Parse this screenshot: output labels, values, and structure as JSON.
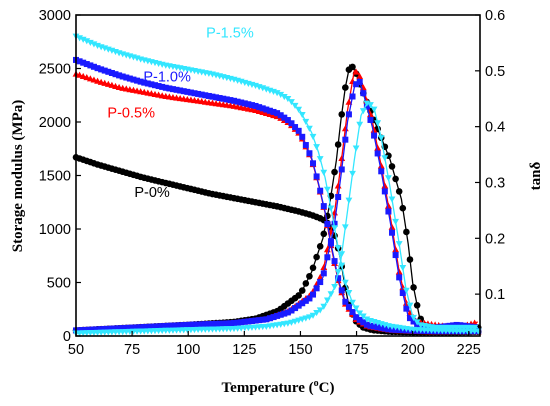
{
  "chart_data": {
    "type": "scatter",
    "xlabel": "Temperature (",
    "xlabel_sup": "o",
    "xlabel_end": "C)",
    "ylabel": "Storage modulus (MPa)",
    "y2label": "tanδ",
    "xlim": [
      50,
      230
    ],
    "ylim": [
      0,
      3000
    ],
    "y2lim": [
      0.025,
      0.6
    ],
    "xticks": [
      50,
      75,
      100,
      125,
      150,
      175,
      200,
      225
    ],
    "yticks": [
      0,
      500,
      1000,
      1500,
      2000,
      2500,
      3000
    ],
    "y2ticks": [
      0.1,
      0.2,
      0.3,
      0.4,
      0.5,
      0.6
    ],
    "y2ticklabels": [
      "0.1",
      "0.2",
      "0.3",
      "0.4",
      "0.5",
      "0.6"
    ],
    "series": [
      {
        "name": "P-0%",
        "color": "#000000",
        "marker": "circle",
        "storage_modulus": [
          [
            50,
            1670
          ],
          [
            60,
            1600
          ],
          [
            70,
            1540
          ],
          [
            80,
            1480
          ],
          [
            90,
            1430
          ],
          [
            100,
            1380
          ],
          [
            110,
            1330
          ],
          [
            120,
            1290
          ],
          [
            130,
            1250
          ],
          [
            140,
            1210
          ],
          [
            150,
            1160
          ],
          [
            155,
            1130
          ],
          [
            160,
            1090
          ],
          [
            163,
            1040
          ],
          [
            166,
            900
          ],
          [
            168,
            700
          ],
          [
            170,
            450
          ],
          [
            172,
            250
          ],
          [
            175,
            130
          ],
          [
            178,
            80
          ],
          [
            182,
            55
          ],
          [
            190,
            40
          ],
          [
            200,
            35
          ],
          [
            210,
            35
          ],
          [
            220,
            35
          ],
          [
            230,
            40
          ]
        ],
        "tan_delta": [
          [
            50,
            0.035
          ],
          [
            75,
            0.04
          ],
          [
            100,
            0.045
          ],
          [
            120,
            0.05
          ],
          [
            130,
            0.056
          ],
          [
            140,
            0.07
          ],
          [
            150,
            0.1
          ],
          [
            155,
            0.14
          ],
          [
            160,
            0.2
          ],
          [
            163,
            0.26
          ],
          [
            166,
            0.34
          ],
          [
            168,
            0.41
          ],
          [
            170,
            0.47
          ],
          [
            172,
            0.51
          ],
          [
            174,
            0.505
          ],
          [
            176,
            0.48
          ],
          [
            180,
            0.44
          ],
          [
            185,
            0.39
          ],
          [
            190,
            0.34
          ],
          [
            195,
            0.27
          ],
          [
            198,
            0.19
          ],
          [
            200,
            0.12
          ],
          [
            203,
            0.06
          ],
          [
            205,
            0.045
          ],
          [
            210,
            0.04
          ],
          [
            220,
            0.04
          ],
          [
            230,
            0.04
          ]
        ]
      },
      {
        "name": "P-0.5%",
        "color": "#ff0000",
        "marker": "triangle-up",
        "storage_modulus": [
          [
            50,
            2450
          ],
          [
            60,
            2380
          ],
          [
            70,
            2320
          ],
          [
            80,
            2280
          ],
          [
            90,
            2240
          ],
          [
            100,
            2210
          ],
          [
            110,
            2180
          ],
          [
            120,
            2150
          ],
          [
            130,
            2110
          ],
          [
            140,
            2050
          ],
          [
            145,
            1990
          ],
          [
            150,
            1880
          ],
          [
            155,
            1650
          ],
          [
            158,
            1420
          ],
          [
            161,
            1150
          ],
          [
            164,
            800
          ],
          [
            167,
            500
          ],
          [
            170,
            300
          ],
          [
            175,
            150
          ],
          [
            180,
            90
          ],
          [
            190,
            55
          ],
          [
            200,
            45
          ],
          [
            210,
            40
          ],
          [
            220,
            40
          ],
          [
            230,
            40
          ]
        ],
        "tan_delta": [
          [
            50,
            0.035
          ],
          [
            75,
            0.04
          ],
          [
            100,
            0.045
          ],
          [
            120,
            0.048
          ],
          [
            135,
            0.055
          ],
          [
            145,
            0.07
          ],
          [
            155,
            0.1
          ],
          [
            160,
            0.14
          ],
          [
            165,
            0.24
          ],
          [
            168,
            0.33
          ],
          [
            171,
            0.43
          ],
          [
            174,
            0.5
          ],
          [
            176,
            0.495
          ],
          [
            178,
            0.47
          ],
          [
            182,
            0.41
          ],
          [
            186,
            0.33
          ],
          [
            190,
            0.24
          ],
          [
            194,
            0.14
          ],
          [
            198,
            0.07
          ],
          [
            202,
            0.05
          ],
          [
            210,
            0.045
          ],
          [
            220,
            0.04
          ],
          [
            229,
            0.05
          ]
        ]
      },
      {
        "name": "P-1.0%",
        "color": "#1a1aff",
        "marker": "square",
        "storage_modulus": [
          [
            50,
            2580
          ],
          [
            60,
            2500
          ],
          [
            70,
            2430
          ],
          [
            80,
            2370
          ],
          [
            90,
            2320
          ],
          [
            100,
            2280
          ],
          [
            110,
            2240
          ],
          [
            120,
            2200
          ],
          [
            130,
            2150
          ],
          [
            140,
            2080
          ],
          [
            145,
            2010
          ],
          [
            150,
            1900
          ],
          [
            155,
            1660
          ],
          [
            158,
            1430
          ],
          [
            161,
            1160
          ],
          [
            164,
            820
          ],
          [
            167,
            520
          ],
          [
            170,
            320
          ],
          [
            175,
            170
          ],
          [
            180,
            100
          ],
          [
            190,
            60
          ],
          [
            200,
            50
          ],
          [
            210,
            45
          ],
          [
            220,
            45
          ],
          [
            230,
            45
          ]
        ],
        "tan_delta": [
          [
            50,
            0.035
          ],
          [
            75,
            0.04
          ],
          [
            100,
            0.045
          ],
          [
            120,
            0.048
          ],
          [
            135,
            0.055
          ],
          [
            145,
            0.068
          ],
          [
            155,
            0.095
          ],
          [
            160,
            0.13
          ],
          [
            165,
            0.22
          ],
          [
            168,
            0.31
          ],
          [
            171,
            0.41
          ],
          [
            174,
            0.47
          ],
          [
            176,
            0.485
          ],
          [
            178,
            0.46
          ],
          [
            182,
            0.4
          ],
          [
            186,
            0.32
          ],
          [
            190,
            0.23
          ],
          [
            194,
            0.13
          ],
          [
            198,
            0.06
          ],
          [
            202,
            0.045
          ],
          [
            210,
            0.04
          ],
          [
            220,
            0.045
          ],
          [
            229,
            0.04
          ]
        ]
      },
      {
        "name": "P-1.5%",
        "color": "#33e6ff",
        "marker": "triangle-down",
        "storage_modulus": [
          [
            50,
            2800
          ],
          [
            60,
            2710
          ],
          [
            70,
            2640
          ],
          [
            80,
            2580
          ],
          [
            90,
            2530
          ],
          [
            100,
            2490
          ],
          [
            110,
            2450
          ],
          [
            120,
            2400
          ],
          [
            130,
            2340
          ],
          [
            140,
            2270
          ],
          [
            145,
            2210
          ],
          [
            150,
            2100
          ],
          [
            155,
            1900
          ],
          [
            158,
            1720
          ],
          [
            161,
            1480
          ],
          [
            164,
            1150
          ],
          [
            167,
            800
          ],
          [
            170,
            500
          ],
          [
            173,
            320
          ],
          [
            176,
            220
          ],
          [
            180,
            150
          ],
          [
            190,
            90
          ],
          [
            200,
            60
          ],
          [
            210,
            50
          ],
          [
            220,
            45
          ],
          [
            230,
            45
          ]
        ],
        "tan_delta": [
          [
            50,
            0.03
          ],
          [
            75,
            0.033
          ],
          [
            100,
            0.036
          ],
          [
            120,
            0.038
          ],
          [
            135,
            0.042
          ],
          [
            145,
            0.048
          ],
          [
            155,
            0.06
          ],
          [
            160,
            0.075
          ],
          [
            165,
            0.11
          ],
          [
            168,
            0.16
          ],
          [
            171,
            0.25
          ],
          [
            174,
            0.34
          ],
          [
            177,
            0.42
          ],
          [
            180,
            0.445
          ],
          [
            183,
            0.43
          ],
          [
            186,
            0.38
          ],
          [
            190,
            0.29
          ],
          [
            194,
            0.19
          ],
          [
            197,
            0.11
          ],
          [
            200,
            0.06
          ],
          [
            203,
            0.045
          ],
          [
            210,
            0.04
          ],
          [
            220,
            0.04
          ],
          [
            229,
            0.04
          ]
        ]
      }
    ]
  }
}
